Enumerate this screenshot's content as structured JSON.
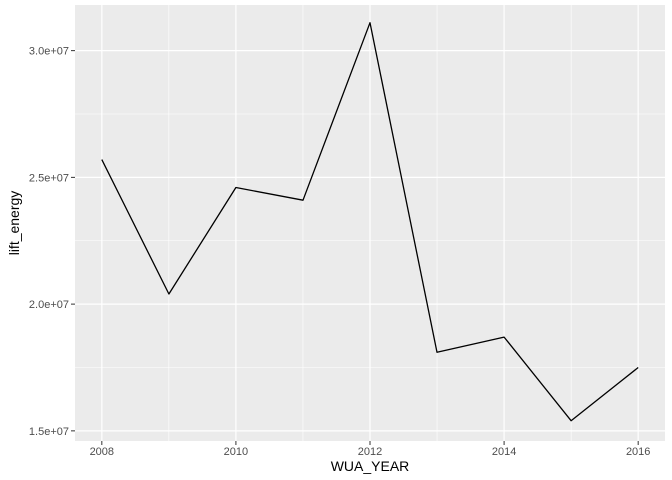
{
  "chart_data": {
    "type": "line",
    "xlabel": "WUA_YEAR",
    "ylabel": "lift_energy",
    "xlim": [
      2007.6,
      2016.4
    ],
    "ylim": [
      14600000,
      31800000
    ],
    "x_ticks": [
      2008,
      2010,
      2012,
      2014,
      2016
    ],
    "x_tick_labels": [
      "2008",
      "2010",
      "2012",
      "2014",
      "2016"
    ],
    "x_minor_ticks": [
      2009,
      2011,
      2013,
      2015
    ],
    "y_ticks": [
      15000000,
      20000000,
      25000000,
      30000000
    ],
    "y_tick_labels": [
      "1.5e+07",
      "2.0e+07",
      "2.5e+07",
      "3.0e+07"
    ],
    "y_minor_ticks": [
      17500000,
      22500000,
      27500000
    ],
    "grid": true,
    "series": [
      {
        "x": [
          2008,
          2009,
          2010,
          2011,
          2012,
          2013,
          2014,
          2015,
          2016
        ],
        "y": [
          25700000,
          20400000,
          24600000,
          24100000,
          31100000,
          18100000,
          18700000,
          15400000,
          17500000
        ]
      }
    ],
    "colors": {
      "panel": "#ebebeb",
      "grid": "#ffffff",
      "line": "#000000",
      "tick_text": "#4d4d4d",
      "tick_mark": "#333333"
    }
  }
}
